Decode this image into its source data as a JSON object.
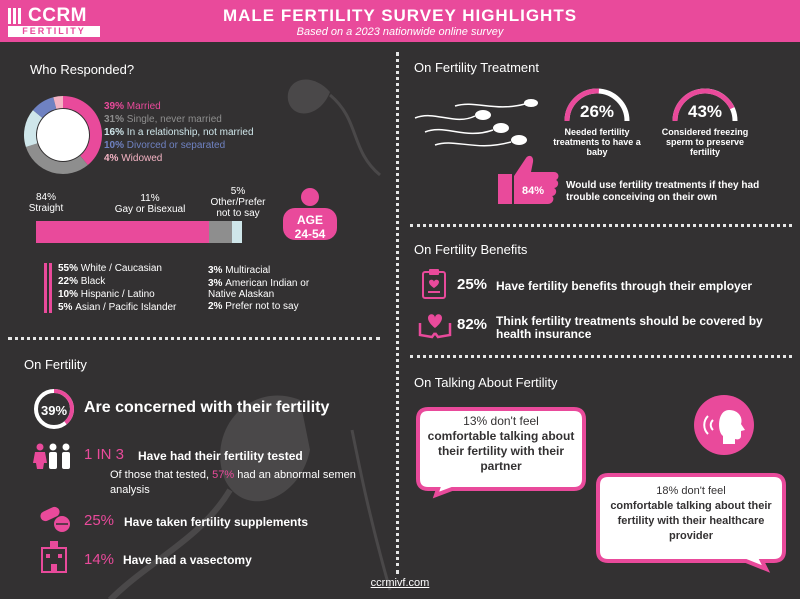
{
  "header": {
    "logo_text": "CCRM",
    "logo_sub": "FERTILITY",
    "title": "MALE FERTILITY SURVEY HIGHLIGHTS",
    "subtitle": "Based on a 2023 nationwide online survey"
  },
  "colors": {
    "accent": "#e94a9b",
    "background": "#333132",
    "gray": "#8e8e8e",
    "light_blue": "#cfe6ea",
    "slate_blue": "#6f82c2",
    "light_pink": "#f3b3c3"
  },
  "who": {
    "title": "Who Responded?",
    "donut_label_1": "1,000",
    "donut_label_2": "MEN",
    "marital": [
      {
        "pct": "39%",
        "label": "Married",
        "value": 39,
        "color": "#e94a9b"
      },
      {
        "pct": "31%",
        "label": "Single, never married",
        "value": 31,
        "color": "#8e8e8e"
      },
      {
        "pct": "16%",
        "label": "In a relationship, not married",
        "value": 16,
        "color": "#cfe6ea"
      },
      {
        "pct": "10%",
        "label": "Divorced or separated",
        "value": 10,
        "color": "#6f82c2"
      },
      {
        "pct": "4%",
        "label": "Widowed",
        "value": 4,
        "color": "#f3b3c3"
      }
    ],
    "orientation": [
      {
        "pct": "84%",
        "label": "Straight",
        "value": 84,
        "color": "#e94a9b"
      },
      {
        "pct": "11%",
        "label": "Gay or Bisexual",
        "value": 11,
        "color": "#8e8e8e"
      },
      {
        "pct": "5%",
        "label": "Other/Prefer not to say",
        "value": 5,
        "color": "#cfe6ea"
      }
    ],
    "age_label": "AGE",
    "age_range": "24-54",
    "ethnicity_left": [
      {
        "pct": "55%",
        "label": "White / Caucasian"
      },
      {
        "pct": "22%",
        "label": "Black"
      },
      {
        "pct": "10%",
        "label": "Hispanic / Latino"
      },
      {
        "pct": "5%",
        "label": "Asian / Pacific Islander"
      }
    ],
    "ethnicity_right": [
      {
        "pct": "3%",
        "label": "Multiracial"
      },
      {
        "pct": "3%",
        "label": "American Indian or Native Alaskan"
      },
      {
        "pct": "2%",
        "label": "Prefer not to say"
      }
    ]
  },
  "fertility": {
    "title": "On Fertility",
    "concerned_pct": "39%",
    "concerned_value": 39,
    "concerned_label": "Are concerned with their fertility",
    "tested_ratio": "1 IN 3",
    "tested_label": "Have had their fertility tested",
    "abnormal_pre": "Of those that tested,",
    "abnormal_pct": "57%",
    "abnormal_post": "had an abnormal semen analysis",
    "supplements_pct": "25%",
    "supplements_label": "Have taken fertility supplements",
    "vasectomy_pct": "14%",
    "vasectomy_label": "Have had a vasectomy"
  },
  "treatment": {
    "title": "On Fertility Treatment",
    "needed_pct": "26%",
    "needed_value": 26,
    "needed_label": "Needed fertility treatments to have a baby",
    "freezing_pct": "43%",
    "freezing_value": 43,
    "freezing_label": "Considered freezing sperm to preserve fertility",
    "would_use_pct": "84%",
    "would_use_label": "Would use fertility treatments if they had trouble conceiving on their own"
  },
  "benefits": {
    "title": "On Fertility Benefits",
    "employer_pct": "25%",
    "employer_label": "Have fertility benefits through their employer",
    "insurance_pct": "82%",
    "insurance_label": "Think fertility treatments should be covered by health insurance"
  },
  "talking": {
    "title": "On Talking About Fertility",
    "partner_pct": "13%",
    "partner_lead": "don't feel",
    "partner_rest": "comfortable talking about their fertility with their partner",
    "provider_pct": "18%",
    "provider_lead": "don't feel",
    "provider_rest": "comfortable talking about their fertility with their healthcare provider"
  },
  "footer": {
    "url": "ccrmivf.com"
  }
}
